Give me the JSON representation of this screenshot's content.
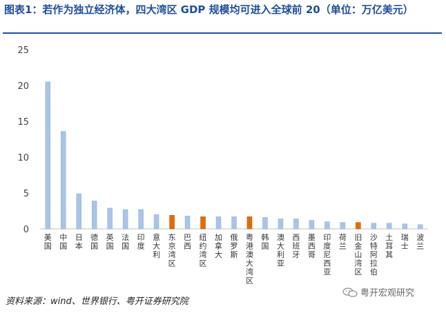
{
  "title": "图表1：若作为独立经济体，四大湾区 GDP 规模均可进入全球前 20（单位：万亿美元）",
  "source": "资料来源：wind、世界银行、粤开证券研究院",
  "watermark": "粤开宏观研究",
  "colors": {
    "normal": "#a9c4e6",
    "highlight": "#e36c09",
    "axis": "#bfbfbf",
    "title": "#1f4e9a"
  },
  "chart_data": {
    "type": "bar",
    "title": "图表1：若作为独立经济体，四大湾区 GDP 规模均可进入全球前 20（单位：万亿美元）",
    "ylim": [
      0,
      25
    ],
    "yticks": [
      0,
      5,
      10,
      15,
      20,
      25
    ],
    "categories": [
      "美国",
      "中国",
      "日本",
      "德国",
      "英国",
      "法国",
      "印度",
      "意大利",
      "东京湾区",
      "巴西",
      "纽约湾区",
      "加拿大",
      "俄罗斯",
      "粤港澳大湾区",
      "韩国",
      "澳大利亚",
      "西班牙",
      "墨西哥",
      "印度尼西亚",
      "荷兰",
      "旧金山湾区",
      "沙特阿拉伯",
      "土耳其",
      "瑞士",
      "波兰"
    ],
    "values": [
      20.5,
      13.6,
      4.9,
      3.9,
      2.9,
      2.7,
      2.7,
      2.0,
      1.9,
      1.8,
      1.7,
      1.7,
      1.7,
      1.7,
      1.6,
      1.4,
      1.4,
      1.2,
      1.0,
      0.9,
      0.9,
      0.8,
      0.8,
      0.7,
      0.6
    ],
    "highlight": [
      "东京湾区",
      "纽约湾区",
      "粤港澳大湾区",
      "旧金山湾区"
    ],
    "grid": false
  }
}
